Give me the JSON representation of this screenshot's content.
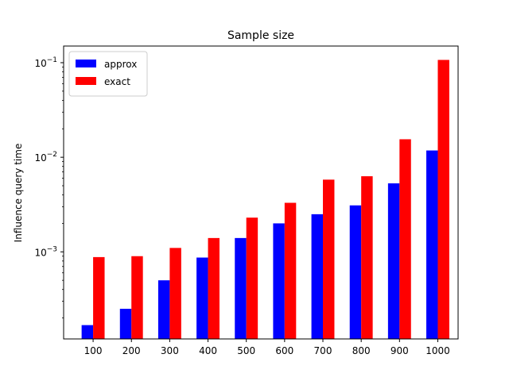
{
  "chart_data": {
    "type": "bar",
    "title": "Sample size",
    "xlabel": "",
    "ylabel": "Influence query time",
    "yscale": "log",
    "ylim": [
      0.00012,
      0.15
    ],
    "yticks": [
      {
        "value": 0.001,
        "base": "10",
        "exp": "−3"
      },
      {
        "value": 0.01,
        "base": "10",
        "exp": "−2"
      },
      {
        "value": 0.1,
        "base": "10",
        "exp": "−1"
      }
    ],
    "categories": [
      "100",
      "200",
      "300",
      "400",
      "500",
      "600",
      "700",
      "800",
      "900",
      "1000"
    ],
    "series": [
      {
        "name": "approx",
        "color": "#0000ff",
        "values": [
          0.000168,
          0.00025,
          0.0005,
          0.00087,
          0.0014,
          0.002,
          0.0025,
          0.0031,
          0.0053,
          0.0118
        ]
      },
      {
        "name": "exact",
        "color": "#ff0000",
        "values": [
          0.00088,
          0.0009,
          0.0011,
          0.0014,
          0.0023,
          0.0033,
          0.0058,
          0.0063,
          0.0155,
          0.107
        ]
      }
    ],
    "legend": "top-left",
    "grid": false
  }
}
